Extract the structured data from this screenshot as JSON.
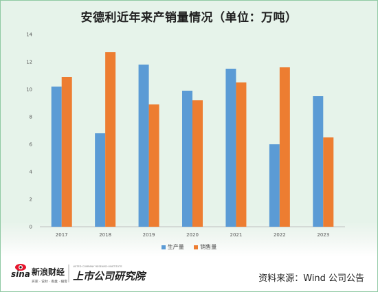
{
  "title": "安德利近年来产销量情况（单位：万吨）",
  "source": "资料来源：Wind 公司公告",
  "logos": {
    "sina_brand": "sina",
    "sina_name": "新浪财经",
    "sina_sub": "买家 · 说财 · 看盘 · 播客",
    "research_name": "上市公司研究院",
    "research_en": "LISTED COMPANY RESEARCH INSTITUTE"
  },
  "colors": {
    "production": "#5b9bd5",
    "sales": "#ed7d31"
  },
  "chart_data": {
    "type": "bar",
    "title": "安德利近年来产销量情况（单位：万吨）",
    "categories": [
      "2017",
      "2018",
      "2019",
      "2020",
      "2021",
      "2022",
      "2023"
    ],
    "series": [
      {
        "name": "生产量",
        "values": [
          10.2,
          6.8,
          11.8,
          9.9,
          11.5,
          6.0,
          9.5
        ]
      },
      {
        "name": "销售量",
        "values": [
          10.9,
          12.7,
          8.9,
          9.2,
          10.5,
          11.6,
          6.5
        ]
      }
    ],
    "ylim": [
      0,
      14
    ],
    "yticks": [
      0,
      2,
      4,
      6,
      8,
      10,
      12,
      14
    ],
    "grid": false,
    "legend": "bottom"
  }
}
